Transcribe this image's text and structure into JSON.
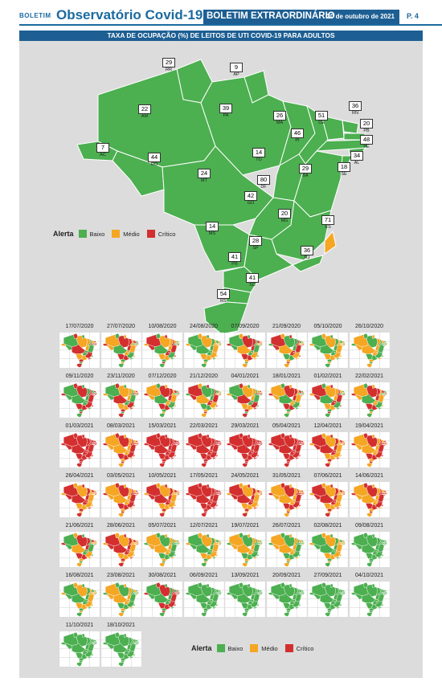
{
  "header": {
    "boletim": "BOLETIM",
    "title": "Observatório Covid-19",
    "edition": "BOLETIM EXTRAORDINÁRIO",
    "date": "20 de outubro de 2021",
    "page": "P. 4"
  },
  "map": {
    "title": "TAXA DE OCUPAÇÃO (%) DE LEITOS DE UTI COVID-19 PARA ADULTOS",
    "states": [
      {
        "sigla": "RR",
        "value": "29",
        "level": "baixo"
      },
      {
        "sigla": "AP",
        "value": "9",
        "level": "baixo"
      },
      {
        "sigla": "AM",
        "value": "22",
        "level": "baixo"
      },
      {
        "sigla": "PA",
        "value": "39",
        "level": "baixo"
      },
      {
        "sigla": "MA",
        "value": "26",
        "level": "baixo"
      },
      {
        "sigla": "CE",
        "value": "51",
        "level": "baixo"
      },
      {
        "sigla": "RN",
        "value": "36",
        "level": "baixo"
      },
      {
        "sigla": "PB",
        "value": "20",
        "level": "baixo"
      },
      {
        "sigla": "PE",
        "value": "48",
        "level": "baixo"
      },
      {
        "sigla": "AL",
        "value": "34",
        "level": "baixo"
      },
      {
        "sigla": "SE",
        "value": "18",
        "level": "baixo"
      },
      {
        "sigla": "PI",
        "value": "46",
        "level": "baixo"
      },
      {
        "sigla": "AC",
        "value": "7",
        "level": "baixo"
      },
      {
        "sigla": "RO",
        "value": "44",
        "level": "baixo"
      },
      {
        "sigla": "TO",
        "value": "14",
        "level": "baixo"
      },
      {
        "sigla": "BA",
        "value": "29",
        "level": "baixo"
      },
      {
        "sigla": "MT",
        "value": "24",
        "level": "baixo"
      },
      {
        "sigla": "DF",
        "value": "80",
        "level": "critico"
      },
      {
        "sigla": "GO",
        "value": "42",
        "level": "baixo"
      },
      {
        "sigla": "MG",
        "value": "20",
        "level": "baixo"
      },
      {
        "sigla": "ES",
        "value": "71",
        "level": "medio"
      },
      {
        "sigla": "MS",
        "value": "14",
        "level": "baixo"
      },
      {
        "sigla": "SP",
        "value": "28",
        "level": "baixo"
      },
      {
        "sigla": "RJ",
        "value": "36",
        "level": "baixo"
      },
      {
        "sigla": "PR",
        "value": "41",
        "level": "baixo"
      },
      {
        "sigla": "SC",
        "value": "41",
        "level": "baixo"
      },
      {
        "sigla": "RS",
        "value": "54",
        "level": "baixo"
      }
    ]
  },
  "legend": {
    "title": "Alerta",
    "items": [
      {
        "label": "Baixo",
        "color": "#4caf50"
      },
      {
        "label": "Médio",
        "color": "#f5a623"
      },
      {
        "label": "Crítico",
        "color": "#d32f2f"
      }
    ]
  },
  "colors": {
    "baixo": "#4caf50",
    "medio": "#f5a623",
    "critico": "#d32f2f",
    "border": "#ffffff"
  },
  "timeline": [
    {
      "date": "17/07/2020",
      "mix": "GYR"
    },
    {
      "date": "27/07/2020",
      "mix": "GYR"
    },
    {
      "date": "10/08/2020",
      "mix": "YGR"
    },
    {
      "date": "24/08/2020",
      "mix": "YG"
    },
    {
      "date": "07/09/2020",
      "mix": "YGR"
    },
    {
      "date": "21/09/2020",
      "mix": "GYR"
    },
    {
      "date": "05/10/2020",
      "mix": "GY"
    },
    {
      "date": "26/10/2020",
      "mix": "GY"
    },
    {
      "date": "09/11/2020",
      "mix": "GR"
    },
    {
      "date": "23/11/2020",
      "mix": "GYR"
    },
    {
      "date": "07/12/2020",
      "mix": "GYR"
    },
    {
      "date": "21/12/2020",
      "mix": "GYR"
    },
    {
      "date": "04/01/2021",
      "mix": "GYR"
    },
    {
      "date": "18/01/2021",
      "mix": "GYR"
    },
    {
      "date": "01/02/2021",
      "mix": "YGR"
    },
    {
      "date": "22/02/2021",
      "mix": "YRG"
    },
    {
      "date": "01/03/2021",
      "mix": "R"
    },
    {
      "date": "08/03/2021",
      "mix": "RY"
    },
    {
      "date": "15/03/2021",
      "mix": "R"
    },
    {
      "date": "22/03/2021",
      "mix": "R"
    },
    {
      "date": "29/03/2021",
      "mix": "R"
    },
    {
      "date": "05/04/2021",
      "mix": "R"
    },
    {
      "date": "12/04/2021",
      "mix": "RY"
    },
    {
      "date": "19/04/2021",
      "mix": "RY"
    },
    {
      "date": "26/04/2021",
      "mix": "RY"
    },
    {
      "date": "03/05/2021",
      "mix": "RY"
    },
    {
      "date": "10/05/2021",
      "mix": "RY"
    },
    {
      "date": "17/05/2021",
      "mix": "R"
    },
    {
      "date": "24/05/2021",
      "mix": "RY"
    },
    {
      "date": "31/05/2021",
      "mix": "RY"
    },
    {
      "date": "07/06/2021",
      "mix": "RY"
    },
    {
      "date": "14/06/2021",
      "mix": "RY"
    },
    {
      "date": "21/06/2021",
      "mix": "RYG"
    },
    {
      "date": "28/06/2021",
      "mix": "YR"
    },
    {
      "date": "05/07/2021",
      "mix": "YG"
    },
    {
      "date": "12/07/2021",
      "mix": "YG"
    },
    {
      "date": "19/07/2021",
      "mix": "YG"
    },
    {
      "date": "26/07/2021",
      "mix": "GY"
    },
    {
      "date": "02/08/2021",
      "mix": "GY"
    },
    {
      "date": "09/08/2021",
      "mix": "G"
    },
    {
      "date": "16/08/2021",
      "mix": "GY"
    },
    {
      "date": "23/08/2021",
      "mix": "GY"
    },
    {
      "date": "30/08/2021",
      "mix": "GR"
    },
    {
      "date": "06/09/2021",
      "mix": "G"
    },
    {
      "date": "13/09/2021",
      "mix": "G"
    },
    {
      "date": "20/09/2021",
      "mix": "G"
    },
    {
      "date": "27/09/2021",
      "mix": "G"
    },
    {
      "date": "04/10/2021",
      "mix": "G"
    },
    {
      "date": "11/10/2021",
      "mix": "G"
    },
    {
      "date": "18/10/2021",
      "mix": "G"
    }
  ]
}
